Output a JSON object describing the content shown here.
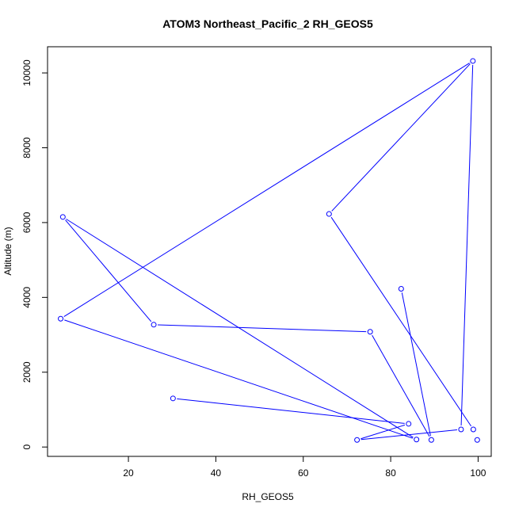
{
  "chart_data": {
    "type": "line",
    "title": "ATOM3 Northeast_Pacific_2 RH_GEOS5",
    "xlabel": "RH_GEOS5",
    "ylabel": "Altitude (m)",
    "xlim": [
      1.5,
      103.0
    ],
    "ylim": [
      -250,
      10700
    ],
    "xticks": [
      20,
      40,
      60,
      80,
      100
    ],
    "yticks": [
      0,
      2000,
      4000,
      6000,
      8000,
      10000
    ],
    "grid": false,
    "series_color": "#0000ff",
    "marker": "open-circle",
    "points": [
      {
        "x": 30.2,
        "y": 1300
      },
      {
        "x": 84.1,
        "y": 620
      },
      {
        "x": 72.3,
        "y": 190
      },
      {
        "x": 96.1,
        "y": 470
      },
      {
        "x": 98.8,
        "y": 10320
      },
      {
        "x": 4.5,
        "y": 3430
      },
      {
        "x": 85.9,
        "y": 200
      },
      {
        "x": 5.0,
        "y": 6150
      },
      {
        "x": 25.8,
        "y": 3270
      },
      {
        "x": 75.3,
        "y": 3080
      },
      {
        "x": 89.3,
        "y": 190
      },
      {
        "x": 82.4,
        "y": 4230
      }
    ],
    "extra_points": [
      {
        "x": 65.9,
        "y": 6230
      },
      {
        "x": 98.9,
        "y": 470
      },
      {
        "x": 99.8,
        "y": 190
      }
    ],
    "extra_segments": [
      {
        "from": {
          "x": 98.8,
          "y": 10320
        },
        "to": {
          "x": 65.9,
          "y": 6230
        }
      },
      {
        "from": {
          "x": 65.9,
          "y": 6230
        },
        "to": {
          "x": 98.9,
          "y": 470
        }
      }
    ]
  }
}
